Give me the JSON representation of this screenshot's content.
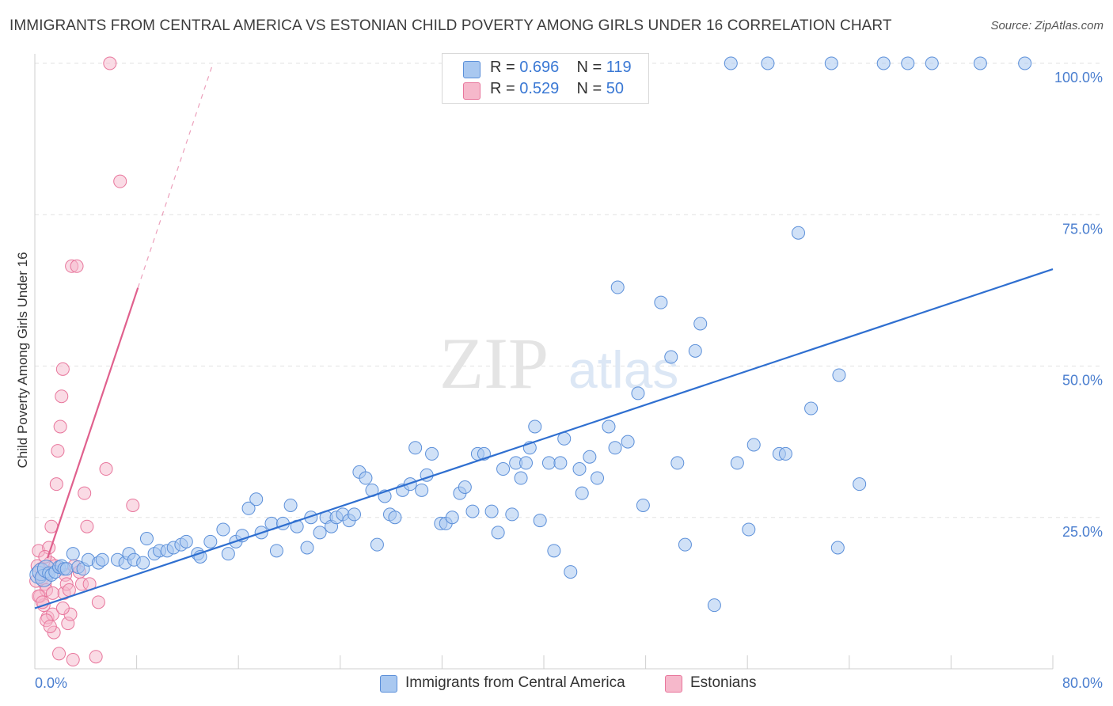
{
  "title": "IMMIGRANTS FROM CENTRAL AMERICA VS ESTONIAN CHILD POVERTY AMONG GIRLS UNDER 16 CORRELATION CHART",
  "source": "Source: ZipAtlas.com",
  "watermark": {
    "zip": "ZIP",
    "atlas": "atlas"
  },
  "colors": {
    "blue_fill": "#a9c8f0",
    "blue_stroke": "#5b8fd9",
    "blue_line": "#2f6fd0",
    "pink_fill": "#f6b8cb",
    "pink_stroke": "#e8769c",
    "pink_line": "#e0608d",
    "axis_text": "#4a7ecf",
    "grid": "#e2e2e2"
  },
  "legend": {
    "rows": [
      {
        "r_label": "R = ",
        "r_value": "0.696",
        "n_label": "N = ",
        "n_value": "119"
      },
      {
        "r_label": "R = ",
        "r_value": "0.529",
        "n_label": "N = ",
        "n_value": "50"
      }
    ]
  },
  "bottom_legend": {
    "series1": "Immigrants from Central America",
    "series2": "Estonians"
  },
  "chart_data": {
    "type": "scatter",
    "title": "IMMIGRANTS FROM CENTRAL AMERICA VS ESTONIAN CHILD POVERTY AMONG GIRLS UNDER 16 CORRELATION CHART",
    "xlabel": "",
    "ylabel": "Child Poverty Among Girls Under 16",
    "xlim": [
      0,
      80
    ],
    "ylim": [
      0,
      100
    ],
    "x_ticks": [
      "0.0%",
      "80.0%"
    ],
    "y_ticks": [
      {
        "value": 25,
        "label": "25.0%"
      },
      {
        "value": 50,
        "label": "50.0%"
      },
      {
        "value": 75,
        "label": "75.0%"
      },
      {
        "value": 100,
        "label": "100.0%"
      }
    ],
    "grid": true,
    "series": [
      {
        "name": "Immigrants from Central America",
        "R": 0.696,
        "N": 119,
        "trend": {
          "x": [
            0,
            80
          ],
          "y": [
            10.0,
            66.0
          ],
          "style": "solid"
        },
        "points": [
          [
            0.3,
            15.5
          ],
          [
            0.5,
            16.0
          ],
          [
            0.7,
            15.0
          ],
          [
            0.9,
            16.5
          ],
          [
            1.1,
            15.8
          ],
          [
            1.3,
            15.5
          ],
          [
            1.6,
            16.0
          ],
          [
            1.9,
            16.8
          ],
          [
            2.1,
            17.0
          ],
          [
            2.3,
            16.5
          ],
          [
            2.5,
            16.5
          ],
          [
            3.0,
            19.0
          ],
          [
            3.4,
            16.8
          ],
          [
            3.8,
            16.5
          ],
          [
            4.2,
            18.0
          ],
          [
            5.0,
            17.5
          ],
          [
            5.3,
            18.0
          ],
          [
            6.5,
            18.0
          ],
          [
            7.1,
            17.5
          ],
          [
            7.4,
            19.0
          ],
          [
            7.8,
            18.0
          ],
          [
            8.5,
            17.5
          ],
          [
            8.8,
            21.5
          ],
          [
            9.4,
            19.0
          ],
          [
            9.8,
            19.5
          ],
          [
            10.4,
            19.5
          ],
          [
            10.9,
            20.0
          ],
          [
            11.5,
            20.5
          ],
          [
            11.9,
            21.0
          ],
          [
            12.8,
            19.0
          ],
          [
            13.0,
            18.5
          ],
          [
            13.8,
            21.0
          ],
          [
            14.8,
            23.0
          ],
          [
            15.2,
            19.0
          ],
          [
            15.8,
            21.0
          ],
          [
            16.3,
            22.0
          ],
          [
            16.8,
            26.5
          ],
          [
            17.4,
            28.0
          ],
          [
            17.8,
            22.5
          ],
          [
            18.6,
            24.0
          ],
          [
            19.0,
            19.5
          ],
          [
            19.5,
            24.0
          ],
          [
            20.1,
            27.0
          ],
          [
            20.6,
            23.5
          ],
          [
            21.4,
            20.0
          ],
          [
            21.7,
            25.0
          ],
          [
            22.4,
            22.5
          ],
          [
            22.9,
            25.0
          ],
          [
            23.3,
            23.5
          ],
          [
            23.7,
            25.0
          ],
          [
            24.2,
            25.5
          ],
          [
            24.7,
            24.5
          ],
          [
            25.1,
            25.5
          ],
          [
            25.5,
            32.5
          ],
          [
            26.0,
            31.5
          ],
          [
            26.5,
            29.5
          ],
          [
            26.9,
            20.5
          ],
          [
            27.5,
            28.5
          ],
          [
            27.9,
            25.5
          ],
          [
            28.3,
            25.0
          ],
          [
            28.9,
            29.5
          ],
          [
            29.5,
            30.5
          ],
          [
            29.9,
            36.5
          ],
          [
            30.4,
            29.5
          ],
          [
            30.8,
            32.0
          ],
          [
            31.2,
            35.5
          ],
          [
            31.9,
            24.0
          ],
          [
            32.3,
            24.0
          ],
          [
            32.8,
            25.0
          ],
          [
            33.4,
            29.0
          ],
          [
            33.8,
            30.0
          ],
          [
            34.4,
            26.0
          ],
          [
            34.8,
            35.5
          ],
          [
            35.3,
            35.5
          ],
          [
            35.9,
            26.0
          ],
          [
            36.4,
            22.5
          ],
          [
            36.8,
            33.0
          ],
          [
            37.5,
            25.5
          ],
          [
            37.8,
            34.0
          ],
          [
            38.2,
            31.5
          ],
          [
            38.6,
            34.0
          ],
          [
            38.9,
            36.5
          ],
          [
            39.3,
            40.0
          ],
          [
            39.7,
            24.5
          ],
          [
            40.4,
            34.0
          ],
          [
            40.8,
            19.5
          ],
          [
            41.3,
            34.0
          ],
          [
            41.6,
            38.0
          ],
          [
            42.1,
            16.0
          ],
          [
            42.8,
            33.0
          ],
          [
            43.0,
            29.0
          ],
          [
            43.6,
            35.0
          ],
          [
            44.2,
            31.5
          ],
          [
            45.1,
            40.0
          ],
          [
            45.6,
            36.5
          ],
          [
            45.8,
            63.0
          ],
          [
            46.6,
            37.5
          ],
          [
            47.4,
            45.5
          ],
          [
            47.8,
            27.0
          ],
          [
            49.2,
            60.5
          ],
          [
            50.0,
            51.5
          ],
          [
            50.5,
            34.0
          ],
          [
            51.1,
            20.5
          ],
          [
            51.9,
            52.5
          ],
          [
            52.3,
            57.0
          ],
          [
            53.4,
            10.5
          ],
          [
            54.7,
            100.0
          ],
          [
            55.2,
            34.0
          ],
          [
            56.1,
            23.0
          ],
          [
            56.5,
            37.0
          ],
          [
            57.6,
            100.0
          ],
          [
            58.5,
            35.5
          ],
          [
            59.0,
            35.5
          ],
          [
            60.0,
            72.0
          ],
          [
            61.0,
            43.0
          ],
          [
            62.6,
            100.0
          ],
          [
            63.1,
            20.0
          ],
          [
            63.2,
            48.5
          ],
          [
            64.8,
            30.5
          ],
          [
            66.7,
            100.0
          ],
          [
            68.6,
            100.0
          ],
          [
            70.5,
            100.0
          ],
          [
            74.3,
            100.0
          ],
          [
            77.8,
            100.0
          ]
        ]
      },
      {
        "name": "Estonians",
        "R": 0.529,
        "N": 50,
        "trend": {
          "x": [
            0,
            14
          ],
          "y": [
            12.0,
            100.0
          ],
          "style": "solid then dashed"
        },
        "points": [
          [
            0.1,
            14.5
          ],
          [
            0.2,
            17.0
          ],
          [
            0.3,
            19.5
          ],
          [
            0.4,
            12.0
          ],
          [
            0.5,
            16.5
          ],
          [
            0.6,
            15.0
          ],
          [
            0.7,
            10.5
          ],
          [
            0.8,
            14.0
          ],
          [
            0.9,
            13.0
          ],
          [
            1.0,
            8.5
          ],
          [
            1.1,
            20.0
          ],
          [
            1.2,
            17.5
          ],
          [
            1.3,
            23.5
          ],
          [
            1.4,
            9.0
          ],
          [
            1.5,
            6.0
          ],
          [
            1.6,
            17.0
          ],
          [
            1.7,
            30.5
          ],
          [
            1.8,
            36.0
          ],
          [
            1.9,
            2.5
          ],
          [
            2.0,
            40.0
          ],
          [
            2.1,
            45.0
          ],
          [
            2.2,
            49.5
          ],
          [
            2.3,
            12.5
          ],
          [
            2.4,
            15.5
          ],
          [
            2.5,
            14.0
          ],
          [
            2.6,
            7.5
          ],
          [
            2.7,
            13.0
          ],
          [
            2.8,
            9.0
          ],
          [
            2.9,
            66.5
          ],
          [
            3.0,
            1.5
          ],
          [
            3.1,
            17.0
          ],
          [
            3.3,
            66.5
          ],
          [
            3.5,
            16.0
          ],
          [
            3.7,
            14.0
          ],
          [
            3.9,
            29.0
          ],
          [
            4.1,
            23.5
          ],
          [
            4.3,
            14.0
          ],
          [
            4.8,
            2.0
          ],
          [
            5.0,
            11.0
          ],
          [
            5.6,
            33.0
          ],
          [
            5.9,
            100.0
          ],
          [
            6.7,
            80.5
          ],
          [
            7.7,
            27.0
          ],
          [
            0.3,
            12.0
          ],
          [
            0.6,
            11.0
          ],
          [
            0.9,
            8.0
          ],
          [
            1.2,
            7.0
          ],
          [
            1.4,
            12.5
          ],
          [
            0.8,
            18.5
          ],
          [
            2.2,
            10.0
          ]
        ]
      }
    ]
  }
}
